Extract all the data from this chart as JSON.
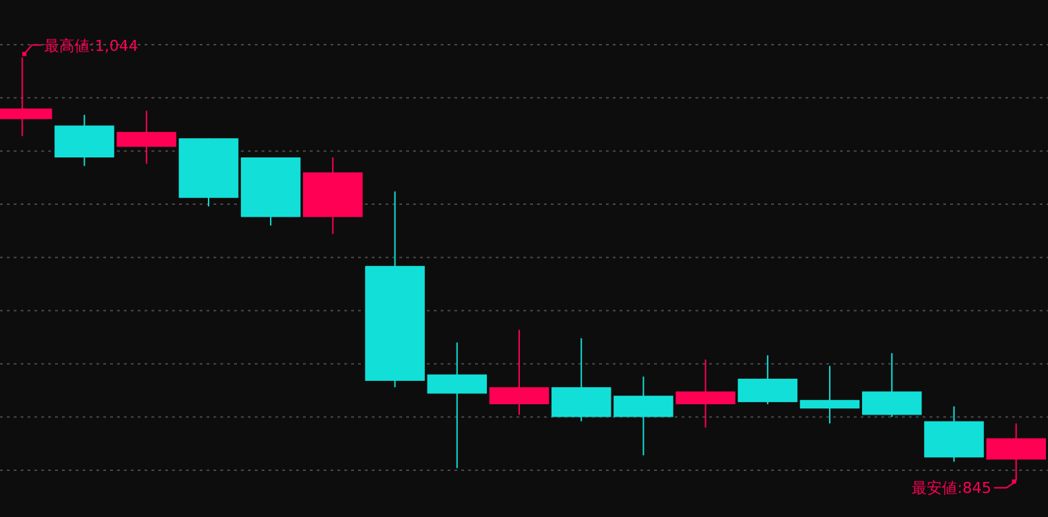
{
  "chart_data": {
    "type": "candlestick",
    "categories": [
      null,
      null,
      null,
      null,
      null,
      null,
      null,
      null,
      null,
      null,
      null,
      null,
      null,
      null,
      null,
      null,
      null
    ],
    "ohlc": [
      [
        1015,
        1044,
        1007,
        1020
      ],
      [
        1012,
        1017,
        993,
        997
      ],
      [
        1002,
        1019,
        994,
        1009
      ],
      [
        1006,
        1006,
        974,
        978
      ],
      [
        997,
        997,
        965,
        969
      ],
      [
        969,
        997,
        961,
        990
      ],
      [
        946,
        981,
        889,
        892
      ],
      [
        895,
        910,
        851,
        886
      ],
      [
        881,
        916,
        876,
        889
      ],
      [
        889,
        912,
        873,
        875
      ],
      [
        885,
        894,
        857,
        875
      ],
      [
        881,
        902,
        870,
        887
      ],
      [
        893,
        904,
        881,
        882
      ],
      [
        883,
        899,
        872,
        879
      ],
      [
        887,
        905,
        875,
        876
      ],
      [
        873,
        880,
        854,
        856
      ],
      [
        855,
        872,
        845,
        865
      ]
    ],
    "colors": [
      "#ff0055",
      "#12e0d8",
      "#ff0055",
      "#12e0d8",
      "#12e0d8",
      "#ff0055",
      "#12e0d8",
      "#12e0d8",
      "#ff0055",
      "#12e0d8",
      "#12e0d8",
      "#ff0055",
      "#12e0d8",
      "#12e0d8",
      "#12e0d8",
      "#12e0d8",
      "#ff0055"
    ],
    "ylim": [
      828,
      1071
    ],
    "yticks": [
      {
        "value": 850,
        "label": null
      },
      {
        "value": 875,
        "label": null
      },
      {
        "value": 900,
        "label": null
      },
      {
        "value": 925,
        "label": null
      },
      {
        "value": 950,
        "label": null
      },
      {
        "value": 975,
        "label": null
      },
      {
        "value": 1000,
        "label": null
      },
      {
        "value": 1025,
        "label": null
      },
      {
        "value": 1050,
        "label": null
      }
    ],
    "grid": "y",
    "annotations": [
      "最高値:1,044",
      "最安値:845"
    ]
  }
}
